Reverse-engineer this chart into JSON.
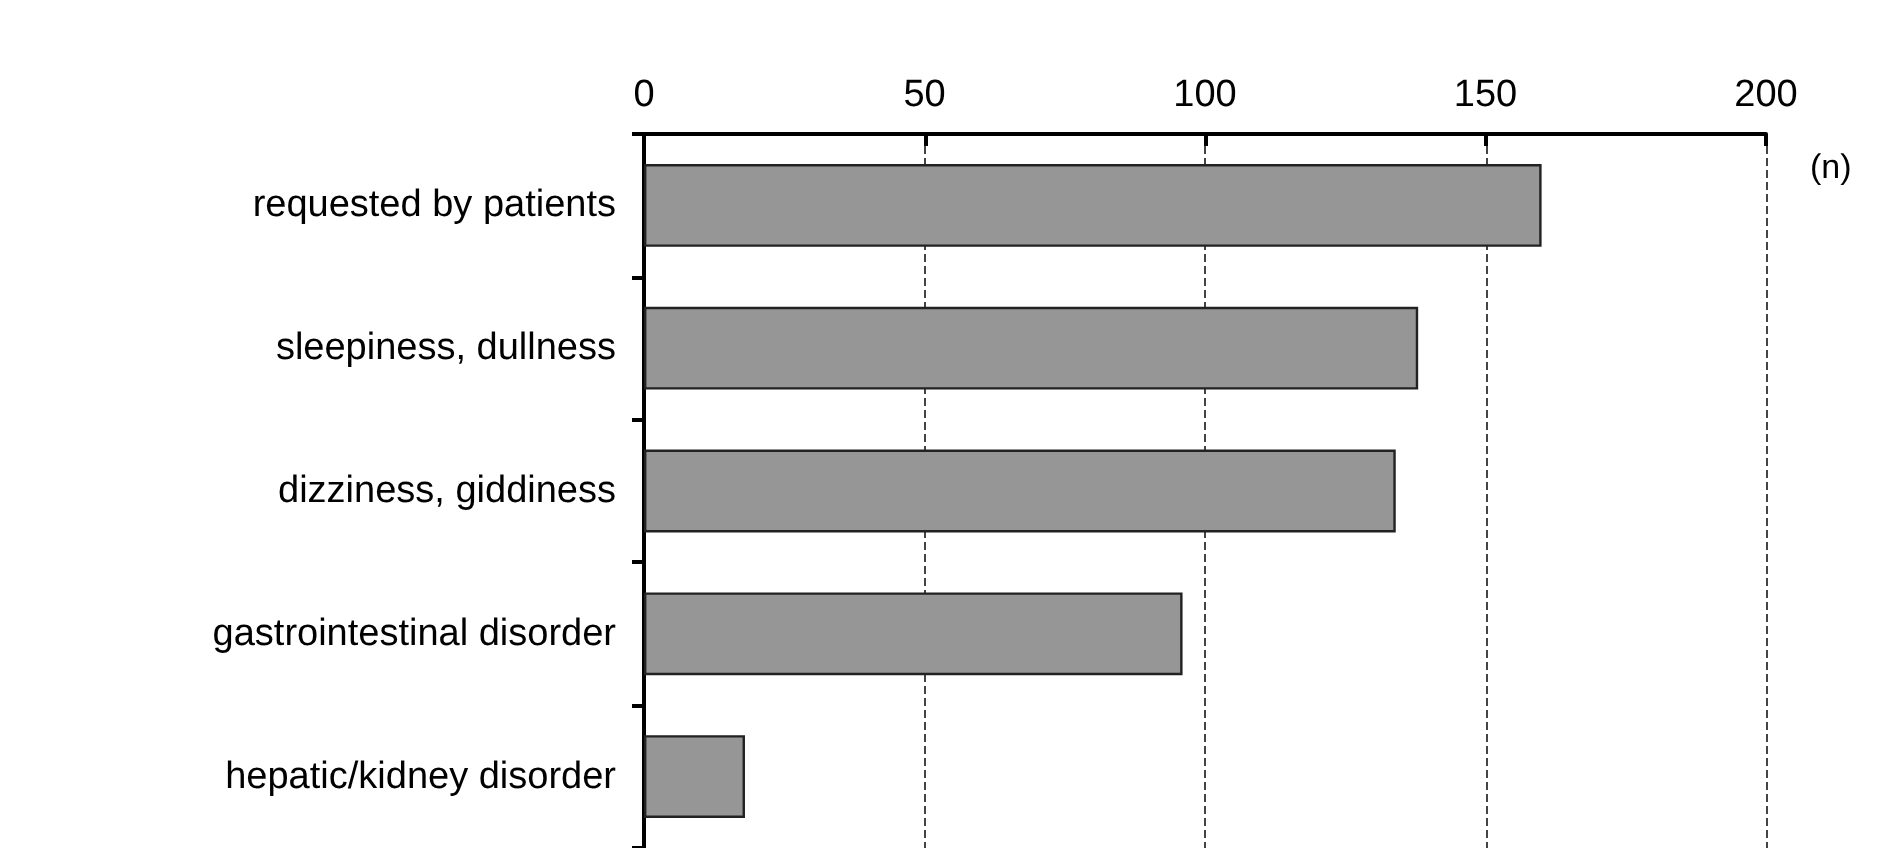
{
  "chart_data": {
    "type": "bar",
    "orientation": "horizontal",
    "xlabel": "(n)",
    "categories": [
      "requested by patients",
      "sleepiness, dullness",
      "dizziness, giddiness",
      "gastrointestinal disorder",
      "hepatic/kidney disorder"
    ],
    "values": [
      160,
      138,
      134,
      96,
      18
    ],
    "color": "#969696",
    "xlim": [
      0,
      200
    ],
    "xticks": [
      0,
      50,
      100,
      150,
      200
    ],
    "grid": "x"
  }
}
